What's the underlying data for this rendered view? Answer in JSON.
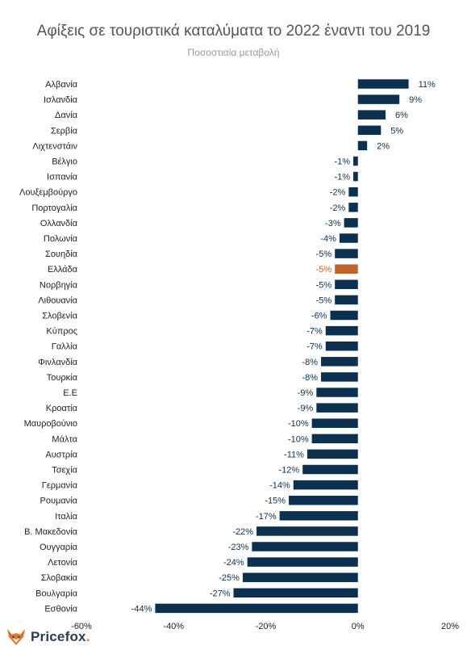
{
  "chart_data": {
    "type": "bar",
    "orientation": "horizontal",
    "title": "Αφίξεις σε τουριστικά καταλύματα το 2022 έναντι του 2019",
    "subtitle": "Ποσοστιαία μεταβολή",
    "categories": [
      "Αλβανία",
      "Ισλανδία",
      "Δανία",
      "Σερβία",
      "Λιχτενστάιν",
      "Βέλγιο",
      "Ισπανία",
      "Λουξεμβούργο",
      "Πορτογαλία",
      "Ολλανδία",
      "Πολωνία",
      "Σουηδία",
      "Ελλάδα",
      "Νορβηγία",
      "Λιθουανία",
      "Σλοβενία",
      "Κύπρος",
      "Γαλλία",
      "Φινλανδία",
      "Τουρκία",
      "Ε.Ε",
      "Κροατία",
      "Μαυροβούνιο",
      "Μάλτα",
      "Αυστρία",
      "Τσεχία",
      "Γερμανία",
      "Ρουμανία",
      "Ιταλία",
      "Β. Μακεδονία",
      "Ουγγαρία",
      "Λετονία",
      "Σλοβακία",
      "Βουλγαρία",
      "Εσθονία"
    ],
    "values": [
      11,
      9,
      6,
      5,
      2,
      -1,
      -1,
      -2,
      -2,
      -3,
      -4,
      -5,
      -5,
      -5,
      -5,
      -6,
      -7,
      -7,
      -8,
      -8,
      -9,
      -9,
      -10,
      -10,
      -11,
      -12,
      -14,
      -15,
      -17,
      -22,
      -23,
      -24,
      -25,
      -27,
      -44
    ],
    "value_labels": [
      "11%",
      "9%",
      "6%",
      "5%",
      "2%",
      "-1%",
      "-1%",
      "-2%",
      "-2%",
      "-3%",
      "-4%",
      "-5%",
      "-5%",
      "-5%",
      "-5%",
      "-6%",
      "-7%",
      "-7%",
      "-8%",
      "-8%",
      "-9%",
      "-9%",
      "-10%",
      "-10%",
      "-11%",
      "-12%",
      "-14%",
      "-15%",
      "-17%",
      "-22%",
      "-23%",
      "-24%",
      "-25%",
      "-27%",
      "-44%"
    ],
    "highlight_category": "Ελλάδα",
    "xlim": [
      -60,
      20
    ],
    "xticks": [
      -60,
      -40,
      -20,
      0,
      20
    ],
    "xtick_labels": [
      "-60%",
      "-40%",
      "-20%",
      "0%",
      "20%"
    ],
    "xlabel": "",
    "ylabel": "",
    "grid": false,
    "legend": "none",
    "colors": {
      "bar": "#0c3050",
      "highlight": "#c0622d",
      "title": "#555555",
      "subtitle": "#999999"
    }
  },
  "brand": {
    "name": "Pricefox",
    "suffix": ".",
    "logo_icon": "fox-icon",
    "colors": {
      "text": "#2a3e4f",
      "fox": "#e8742a"
    }
  }
}
